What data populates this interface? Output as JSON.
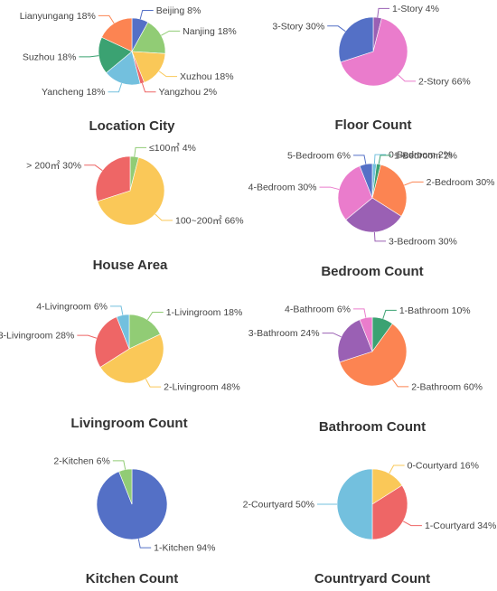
{
  "palette": {
    "blue": "#5470c6",
    "green": "#91cc75",
    "yellow": "#fac858",
    "red": "#ee6666",
    "cyan": "#73c0de",
    "teal": "#3ba272",
    "orange": "#fc8452",
    "purple": "#9a60b4",
    "pink": "#ea7ccc"
  },
  "chart_data": [
    {
      "type": "pie",
      "title": "Location City",
      "slices": [
        {
          "label": "Beijing 8%",
          "value": 8,
          "color": "blue"
        },
        {
          "label": "Nanjing 18%",
          "value": 18,
          "color": "green"
        },
        {
          "label": "Xuzhou 18%",
          "value": 18,
          "color": "yellow"
        },
        {
          "label": "Yangzhou 2%",
          "value": 2,
          "color": "red"
        },
        {
          "label": "Yancheng 18%",
          "value": 18,
          "color": "cyan"
        },
        {
          "label": "Suzhou 18%",
          "value": 18,
          "color": "teal"
        },
        {
          "label": "Lianyungang 18%",
          "value": 18,
          "color": "orange"
        }
      ]
    },
    {
      "type": "pie",
      "title": "Floor Count",
      "slices": [
        {
          "label": "1-Story 4%",
          "value": 4,
          "color": "purple"
        },
        {
          "label": "2-Story 66%",
          "value": 66,
          "color": "pink"
        },
        {
          "label": "3-Story 30%",
          "value": 30,
          "color": "blue"
        }
      ]
    },
    {
      "type": "pie",
      "title": "House Area",
      "slices": [
        {
          "label": "≤100㎡ 4%",
          "value": 4,
          "color": "green"
        },
        {
          "label": "100~200㎡ 66%",
          "value": 66,
          "color": "yellow"
        },
        {
          "label": "> 200㎡ 30%",
          "value": 30,
          "color": "red"
        }
      ]
    },
    {
      "type": "pie",
      "title": "Bedroom Count",
      "slices": [
        {
          "label": "0-Bedroom 2%",
          "value": 2,
          "color": "cyan"
        },
        {
          "label": "1-Bedroom 2%",
          "value": 2,
          "color": "teal"
        },
        {
          "label": "2-Bedroom 30%",
          "value": 30,
          "color": "orange"
        },
        {
          "label": "3-Bedroom 30%",
          "value": 30,
          "color": "purple"
        },
        {
          "label": "4-Bedroom 30%",
          "value": 30,
          "color": "pink"
        },
        {
          "label": "5-Bedroom 6%",
          "value": 6,
          "color": "blue"
        }
      ]
    },
    {
      "type": "pie",
      "title": "Livingroom Count",
      "slices": [
        {
          "label": "1-Livingroom 18%",
          "value": 18,
          "color": "green"
        },
        {
          "label": "2-Livingroom 48%",
          "value": 48,
          "color": "yellow"
        },
        {
          "label": "3-Livingroom 28%",
          "value": 28,
          "color": "red"
        },
        {
          "label": "4-Livingroom 6%",
          "value": 6,
          "color": "cyan"
        }
      ]
    },
    {
      "type": "pie",
      "title": "Bathroom Count",
      "slices": [
        {
          "label": "1-Bathroom 10%",
          "value": 10,
          "color": "teal"
        },
        {
          "label": "2-Bathroom 60%",
          "value": 60,
          "color": "orange"
        },
        {
          "label": "3-Bathroom 24%",
          "value": 24,
          "color": "purple"
        },
        {
          "label": "4-Bathroom 6%",
          "value": 6,
          "color": "pink"
        }
      ]
    },
    {
      "type": "pie",
      "title": "Kitchen Count",
      "slices": [
        {
          "label": "1-Kitchen 94%",
          "value": 94,
          "color": "blue"
        },
        {
          "label": "2-Kitchen 6%",
          "value": 6,
          "color": "green"
        }
      ]
    },
    {
      "type": "pie",
      "title": "Countryard Count",
      "slices": [
        {
          "label": "0-Courtyard 16%",
          "value": 16,
          "color": "yellow"
        },
        {
          "label": "1-Courtyard 34%",
          "value": 34,
          "color": "red"
        },
        {
          "label": "2-Courtyard 50%",
          "value": 50,
          "color": "cyan"
        }
      ]
    }
  ]
}
